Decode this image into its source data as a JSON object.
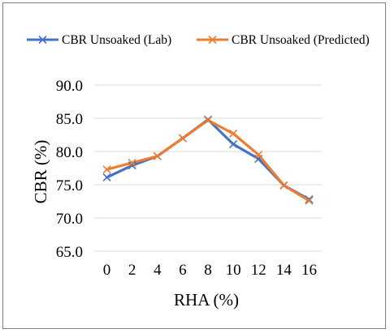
{
  "chart_data": {
    "type": "line",
    "title": "",
    "xlabel": "RHA (%)",
    "ylabel": "CBR (%)",
    "categories": [
      "0",
      "2",
      "4",
      "6",
      "8",
      "10",
      "12",
      "14",
      "16"
    ],
    "ylim": [
      65,
      90
    ],
    "yticks": [
      "65.0",
      "70.0",
      "75.0",
      "80.0",
      "85.0",
      "90.0"
    ],
    "grid": true,
    "legend_position": "top",
    "series": [
      {
        "name": "CBR Unsoaked (Lab)",
        "color": "#4472C4",
        "marker": "x",
        "values": [
          76.1,
          77.9,
          79.3,
          82.0,
          84.8,
          81.1,
          78.9,
          74.9,
          72.8
        ]
      },
      {
        "name": "CBR Unsoaked (Predicted)",
        "color": "#ED7D31",
        "marker": "x",
        "values": [
          77.3,
          78.3,
          79.3,
          82.0,
          84.7,
          82.7,
          79.5,
          74.9,
          72.6
        ]
      }
    ]
  }
}
